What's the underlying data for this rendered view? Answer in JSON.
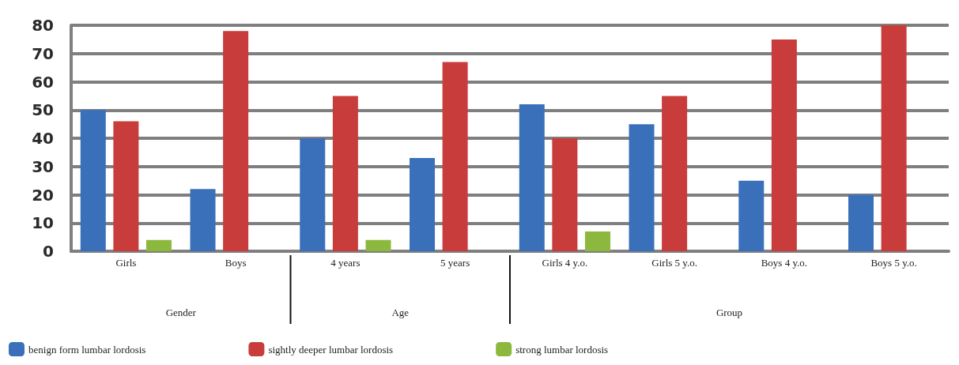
{
  "chart_data": {
    "type": "bar",
    "categories": [
      "Girls",
      "Boys",
      "4 years",
      "5 years",
      "Girls 4 y.o.",
      "Girls 5 y.o.",
      "Boys 4 y.o.",
      "Boys 5 y.o."
    ],
    "series": [
      {
        "name": "benign form lumbar lordosis",
        "color": "#3a70b9",
        "values": [
          50,
          22,
          40,
          33,
          52,
          45,
          25,
          20
        ]
      },
      {
        "name": "sightly deeper lumbar lordosis",
        "color": "#c83c3c",
        "values": [
          46,
          78,
          55,
          67,
          40,
          55,
          75,
          80
        ]
      },
      {
        "name": "strong lumbar lordosis",
        "color": "#8cb83e",
        "values": [
          4,
          null,
          4,
          null,
          7,
          null,
          null,
          null
        ]
      }
    ],
    "annotations": [
      "Gender",
      "Age",
      "Group"
    ],
    "ylim": [
      0,
      80
    ],
    "yticks": [
      0,
      10,
      20,
      30,
      40,
      50,
      60,
      70,
      80
    ],
    "grid": "y",
    "legend": "bottom left"
  }
}
